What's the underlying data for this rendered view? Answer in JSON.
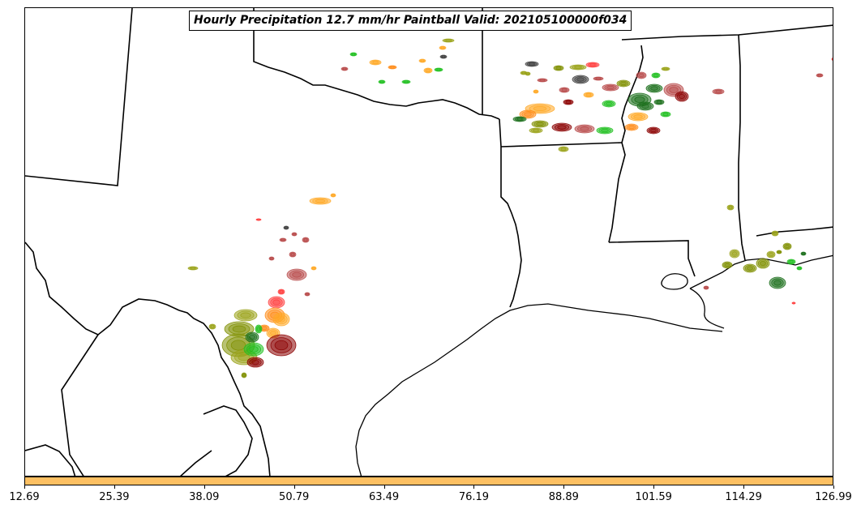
{
  "title": "Hourly Precipitation 12.7 mm/hr Paintball Valid: 202105100000f034",
  "colorbar": {
    "color": "#fdc062",
    "tick_labels": [
      "12.69",
      "25.39",
      "38.09",
      "50.79",
      "63.49",
      "76.19",
      "88.89",
      "101.59",
      "114.29",
      "126.99"
    ]
  },
  "member_colors": [
    "#8b0000",
    "#ff4040",
    "#ff8c1a",
    "#ffa826",
    "#7f8f00",
    "#9aa31a",
    "#20c020",
    "#1a6e1a",
    "#404040",
    "#b84a4a"
  ]
}
